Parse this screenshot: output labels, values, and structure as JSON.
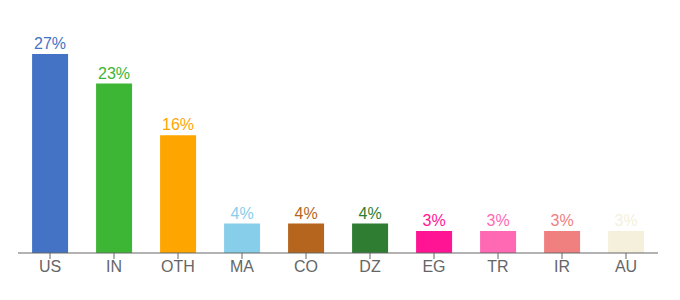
{
  "chart_data": {
    "type": "bar",
    "categories": [
      "US",
      "IN",
      "OTH",
      "MA",
      "CO",
      "DZ",
      "EG",
      "TR",
      "IR",
      "AU"
    ],
    "values": [
      27,
      23,
      16,
      4,
      4,
      4,
      3,
      3,
      3,
      3
    ],
    "value_labels": [
      "27%",
      "23%",
      "16%",
      "4%",
      "4%",
      "4%",
      "3%",
      "3%",
      "3%",
      "3%"
    ],
    "data_labels": true,
    "colors": [
      "#4472c4",
      "#3db535",
      "#ffa500",
      "#87ceeb",
      "#b5651d",
      "#2e7d32",
      "#ff1493",
      "#ff69b4",
      "#f08080",
      "#f5f0dc"
    ],
    "ylim": [
      0,
      30
    ],
    "grid": false,
    "tick_labels": "x"
  }
}
